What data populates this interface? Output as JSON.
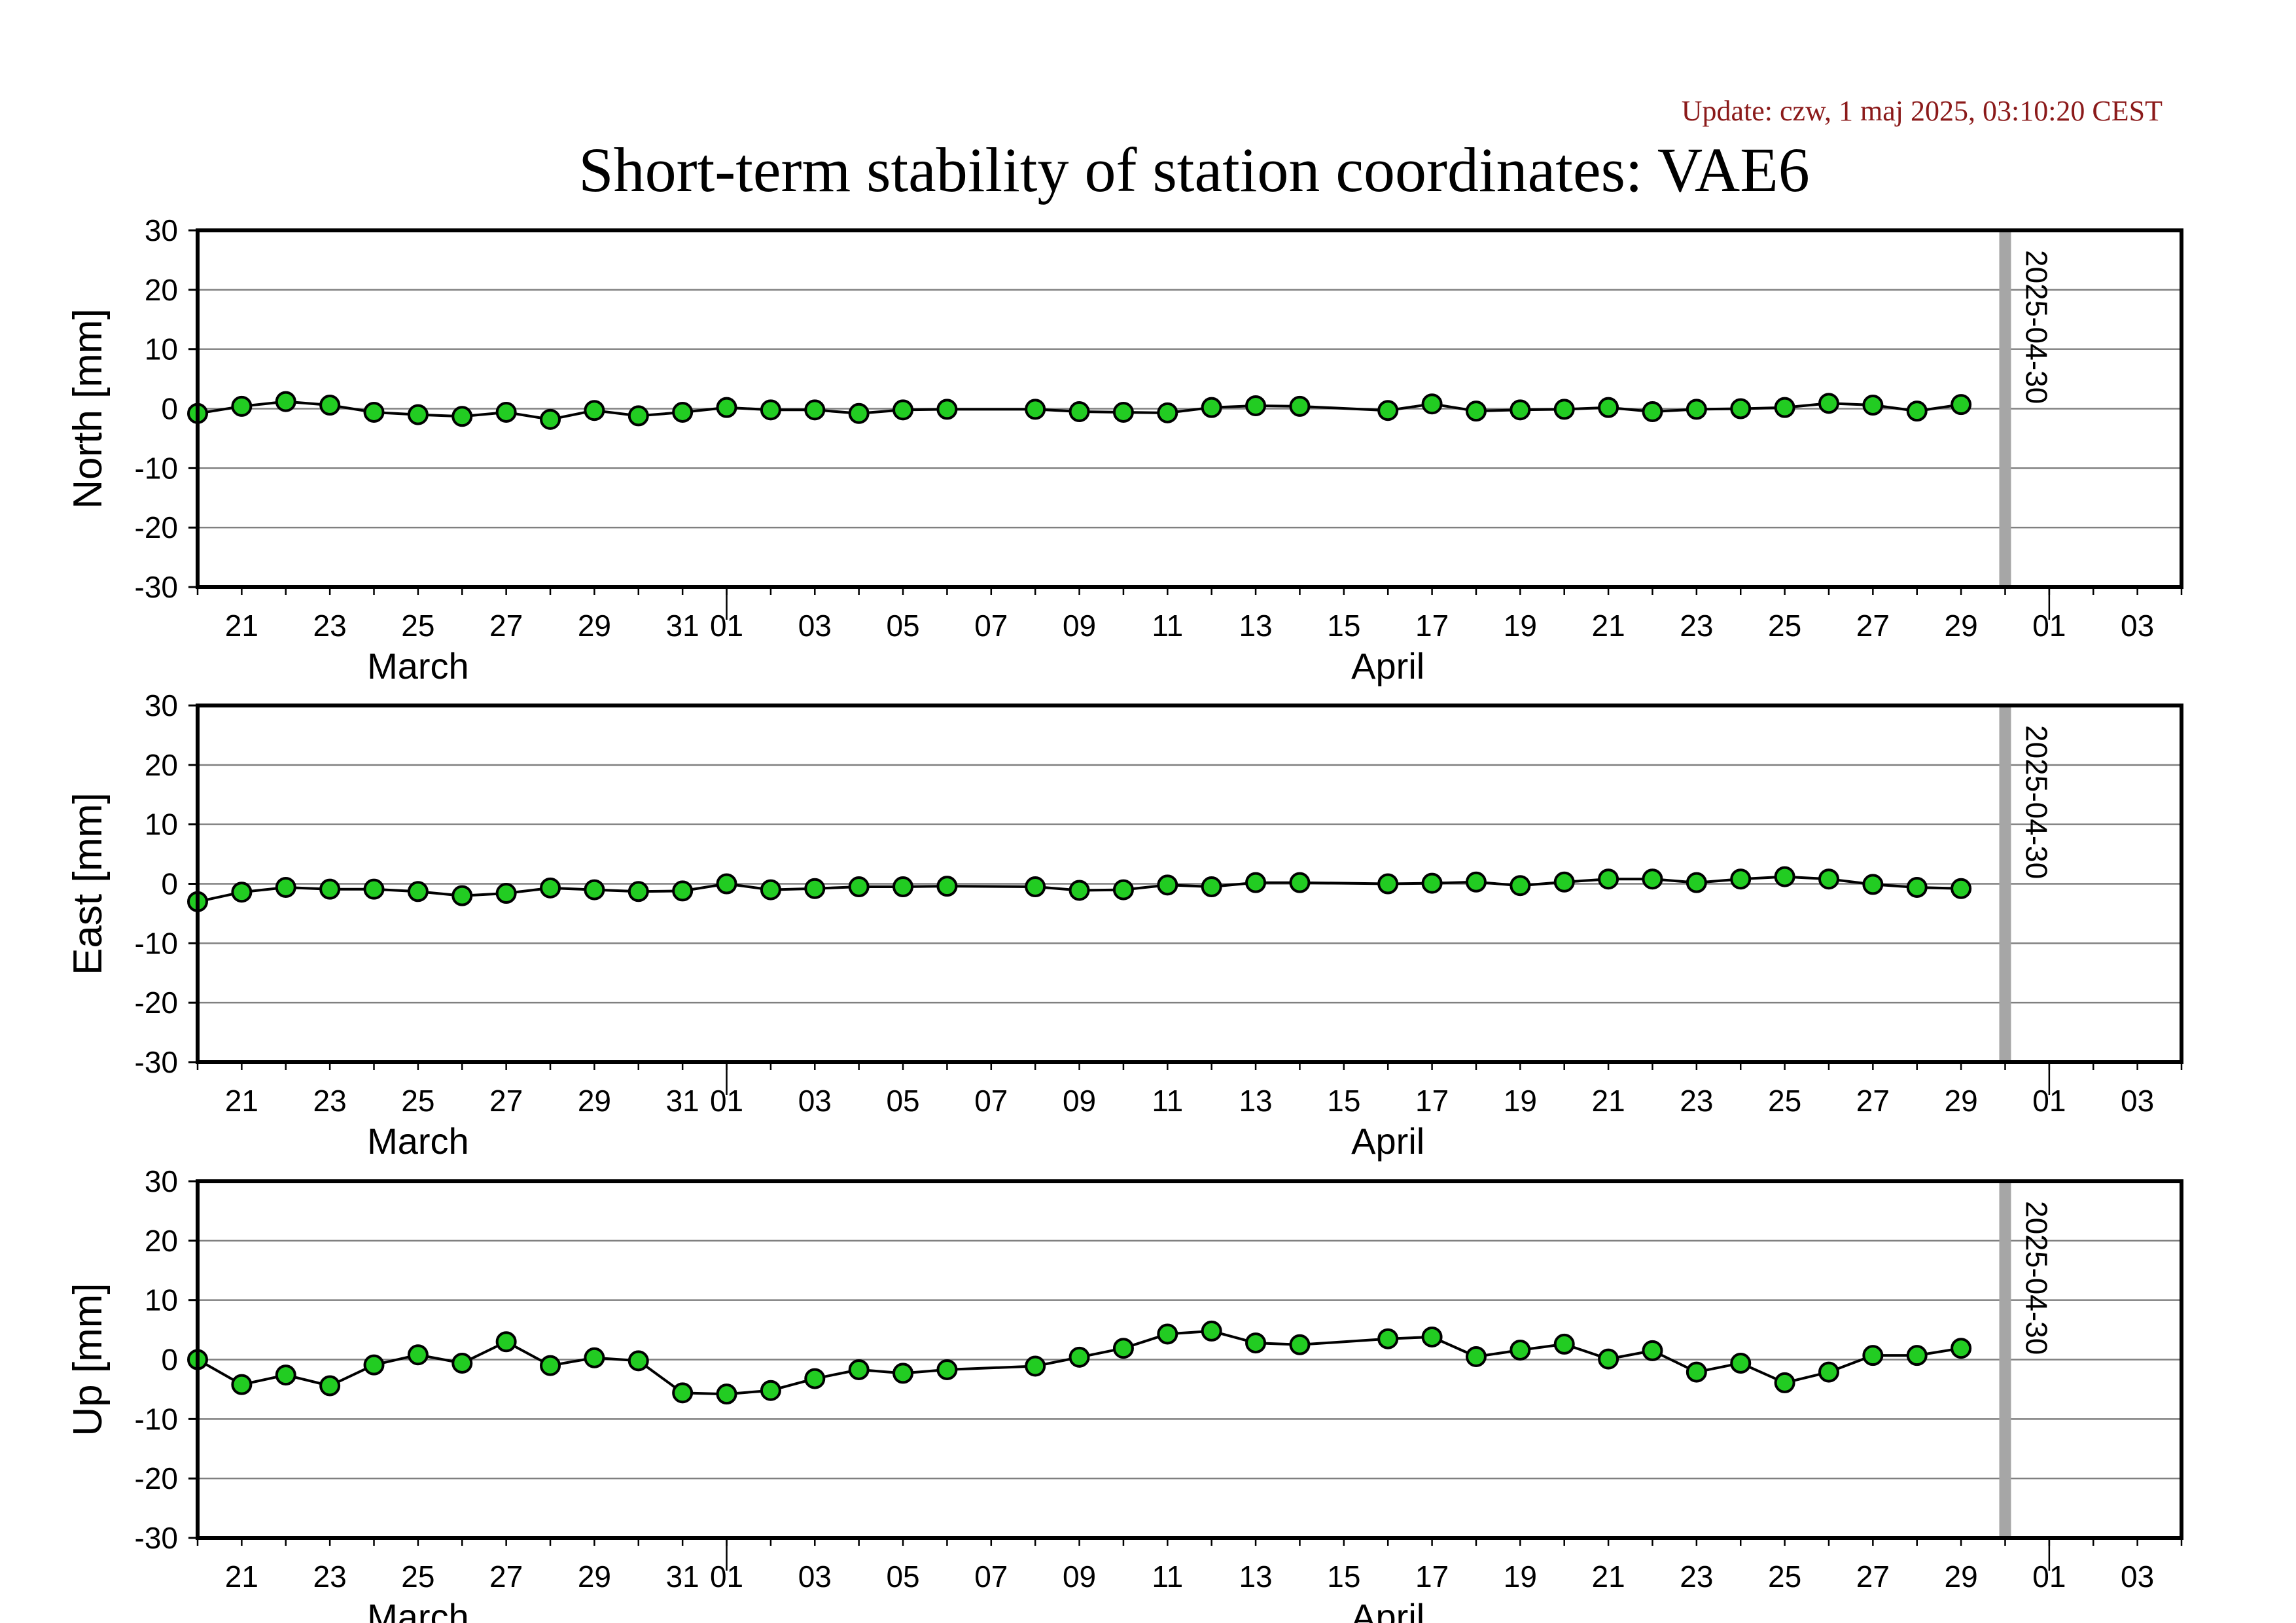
{
  "header": {
    "update": "Update: czw, 1 maj 2025, 03:10:20 CEST",
    "title": "Short-term stability of station coordinates: VAE6"
  },
  "style": {
    "marker_fill": "#22cc22",
    "marker_stroke": "#000000",
    "line_color": "#000000",
    "grid_color": "#808080",
    "vline_color": "#a6a6a6"
  },
  "x_axis": {
    "tick_labels": [
      {
        "date": "2025-03-21",
        "label": "21"
      },
      {
        "date": "2025-03-23",
        "label": "23"
      },
      {
        "date": "2025-03-25",
        "label": "25"
      },
      {
        "date": "2025-03-27",
        "label": "27"
      },
      {
        "date": "2025-03-29",
        "label": "29"
      },
      {
        "date": "2025-03-31",
        "label": "31"
      },
      {
        "date": "2025-04-01",
        "label": "01"
      },
      {
        "date": "2025-04-03",
        "label": "03"
      },
      {
        "date": "2025-04-05",
        "label": "05"
      },
      {
        "date": "2025-04-07",
        "label": "07"
      },
      {
        "date": "2025-04-09",
        "label": "09"
      },
      {
        "date": "2025-04-11",
        "label": "11"
      },
      {
        "date": "2025-04-13",
        "label": "13"
      },
      {
        "date": "2025-04-15",
        "label": "15"
      },
      {
        "date": "2025-04-17",
        "label": "17"
      },
      {
        "date": "2025-04-19",
        "label": "19"
      },
      {
        "date": "2025-04-21",
        "label": "21"
      },
      {
        "date": "2025-04-23",
        "label": "23"
      },
      {
        "date": "2025-04-25",
        "label": "25"
      },
      {
        "date": "2025-04-27",
        "label": "27"
      },
      {
        "date": "2025-04-29",
        "label": "29"
      },
      {
        "date": "2025-05-01",
        "label": "01"
      },
      {
        "date": "2025-05-03",
        "label": "03"
      }
    ],
    "months": [
      {
        "date": "2025-03-25",
        "label": "March"
      },
      {
        "date": "2025-04-16",
        "label": "April"
      }
    ],
    "month_boundaries": [
      "2025-04-01",
      "2025-05-01"
    ]
  },
  "marker": {
    "date": "2025-04-30",
    "label": "2025-04-30"
  },
  "chart_data": [
    {
      "type": "line",
      "ylabel": "North [mm]",
      "ylim": [
        -30,
        30
      ],
      "yticks": [
        30,
        20,
        10,
        0,
        -10,
        -20,
        -30
      ],
      "xlim": [
        "2025-03-20",
        "2025-05-04"
      ],
      "grid": true,
      "x": [
        "2025-03-20",
        "2025-03-21",
        "2025-03-22",
        "2025-03-23",
        "2025-03-24",
        "2025-03-25",
        "2025-03-26",
        "2025-03-27",
        "2025-03-28",
        "2025-03-29",
        "2025-03-30",
        "2025-03-31",
        "2025-04-01",
        "2025-04-02",
        "2025-04-03",
        "2025-04-04",
        "2025-04-05",
        "2025-04-06",
        "2025-04-08",
        "2025-04-09",
        "2025-04-10",
        "2025-04-11",
        "2025-04-12",
        "2025-04-13",
        "2025-04-14",
        "2025-04-16",
        "2025-04-17",
        "2025-04-18",
        "2025-04-19",
        "2025-04-20",
        "2025-04-21",
        "2025-04-22",
        "2025-04-23",
        "2025-04-24",
        "2025-04-25",
        "2025-04-26",
        "2025-04-27",
        "2025-04-28",
        "2025-04-29"
      ],
      "values": [
        -0.8,
        0.4,
        1.2,
        0.6,
        -0.6,
        -1.0,
        -1.3,
        -0.6,
        -1.8,
        -0.3,
        -1.2,
        -0.6,
        0.2,
        -0.2,
        -0.2,
        -0.8,
        -0.2,
        -0.1,
        -0.1,
        -0.5,
        -0.6,
        -0.7,
        0.2,
        0.5,
        0.4,
        -0.3,
        0.8,
        -0.4,
        -0.2,
        -0.1,
        0.2,
        -0.5,
        -0.1,
        0.0,
        0.2,
        0.9,
        0.6,
        -0.4,
        0.7
      ]
    },
    {
      "type": "line",
      "ylabel": "East [mm]",
      "ylim": [
        -30,
        30
      ],
      "yticks": [
        30,
        20,
        10,
        0,
        -10,
        -20,
        -30
      ],
      "xlim": [
        "2025-03-20",
        "2025-05-04"
      ],
      "grid": true,
      "x": [
        "2025-03-20",
        "2025-03-21",
        "2025-03-22",
        "2025-03-23",
        "2025-03-24",
        "2025-03-25",
        "2025-03-26",
        "2025-03-27",
        "2025-03-28",
        "2025-03-29",
        "2025-03-30",
        "2025-03-31",
        "2025-04-01",
        "2025-04-02",
        "2025-04-03",
        "2025-04-04",
        "2025-04-05",
        "2025-04-06",
        "2025-04-08",
        "2025-04-09",
        "2025-04-10",
        "2025-04-11",
        "2025-04-12",
        "2025-04-13",
        "2025-04-14",
        "2025-04-16",
        "2025-04-17",
        "2025-04-18",
        "2025-04-19",
        "2025-04-20",
        "2025-04-21",
        "2025-04-22",
        "2025-04-23",
        "2025-04-24",
        "2025-04-25",
        "2025-04-26",
        "2025-04-27",
        "2025-04-28",
        "2025-04-29"
      ],
      "values": [
        -3.0,
        -1.4,
        -0.6,
        -0.9,
        -0.9,
        -1.3,
        -2.0,
        -1.6,
        -0.7,
        -1.0,
        -1.3,
        -1.2,
        0.0,
        -1.0,
        -0.8,
        -0.5,
        -0.5,
        -0.4,
        -0.5,
        -1.1,
        -1.0,
        -0.2,
        -0.5,
        0.2,
        0.2,
        0.0,
        0.1,
        0.3,
        -0.3,
        0.3,
        0.8,
        0.8,
        0.2,
        0.8,
        1.2,
        0.8,
        -0.1,
        -0.6,
        -0.8
      ]
    },
    {
      "type": "line",
      "ylabel": "Up [mm]",
      "ylim": [
        -30,
        30
      ],
      "yticks": [
        30,
        20,
        10,
        0,
        -10,
        -20,
        -30
      ],
      "xlim": [
        "2025-03-20",
        "2025-05-04"
      ],
      "grid": true,
      "x": [
        "2025-03-20",
        "2025-03-21",
        "2025-03-22",
        "2025-03-23",
        "2025-03-24",
        "2025-03-25",
        "2025-03-26",
        "2025-03-27",
        "2025-03-28",
        "2025-03-29",
        "2025-03-30",
        "2025-03-31",
        "2025-04-01",
        "2025-04-02",
        "2025-04-03",
        "2025-04-04",
        "2025-04-05",
        "2025-04-06",
        "2025-04-08",
        "2025-04-09",
        "2025-04-10",
        "2025-04-11",
        "2025-04-12",
        "2025-04-13",
        "2025-04-14",
        "2025-04-16",
        "2025-04-17",
        "2025-04-18",
        "2025-04-19",
        "2025-04-20",
        "2025-04-21",
        "2025-04-22",
        "2025-04-23",
        "2025-04-24",
        "2025-04-25",
        "2025-04-26",
        "2025-04-27",
        "2025-04-28",
        "2025-04-29"
      ],
      "values": [
        0.0,
        -4.2,
        -2.6,
        -4.4,
        -0.9,
        0.8,
        -0.6,
        3.0,
        -1.0,
        0.3,
        -0.2,
        -5.6,
        -5.8,
        -5.2,
        -3.2,
        -1.7,
        -2.3,
        -1.7,
        -1.1,
        0.4,
        1.9,
        4.3,
        4.8,
        2.8,
        2.5,
        3.5,
        3.8,
        0.5,
        1.6,
        2.6,
        0.1,
        1.5,
        -2.1,
        -0.6,
        -3.9,
        -2.1,
        0.7,
        0.7,
        1.9
      ]
    }
  ]
}
